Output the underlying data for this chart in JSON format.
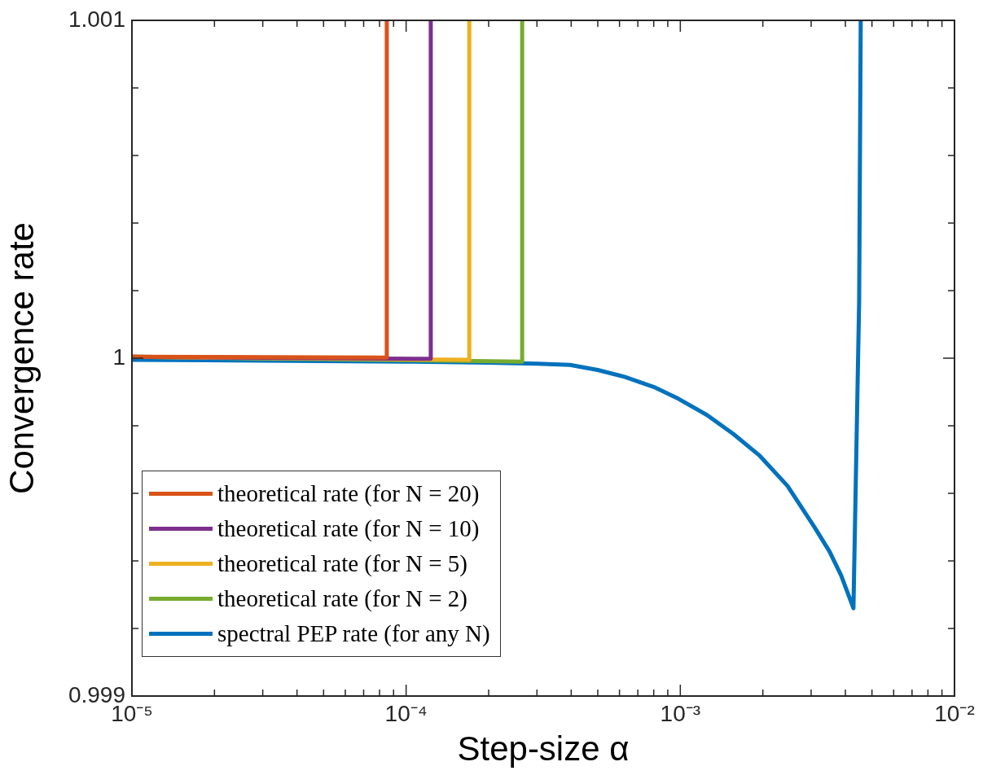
{
  "chart_data": {
    "type": "line",
    "xlabel": "Step-size α",
    "ylabel": "Convergence rate",
    "log": "x",
    "xlim": [
      1e-05,
      0.01
    ],
    "ylim": [
      0.999,
      1.001
    ],
    "xticks": [
      {
        "value": 1e-05,
        "label": "10⁻⁵"
      },
      {
        "value": 2e-05,
        "label": null
      },
      {
        "value": 3e-05,
        "label": null
      },
      {
        "value": 4e-05,
        "label": null
      },
      {
        "value": 5e-05,
        "label": null
      },
      {
        "value": 6e-05,
        "label": null
      },
      {
        "value": 7e-05,
        "label": null
      },
      {
        "value": 8e-05,
        "label": null
      },
      {
        "value": 9e-05,
        "label": null
      },
      {
        "value": 0.0001,
        "label": "10⁻⁴"
      },
      {
        "value": 0.0002,
        "label": null
      },
      {
        "value": 0.0003,
        "label": null
      },
      {
        "value": 0.0004,
        "label": null
      },
      {
        "value": 0.0005,
        "label": null
      },
      {
        "value": 0.0006,
        "label": null
      },
      {
        "value": 0.0007,
        "label": null
      },
      {
        "value": 0.0008,
        "label": null
      },
      {
        "value": 0.0009,
        "label": null
      },
      {
        "value": 0.001,
        "label": "10⁻³"
      },
      {
        "value": 0.002,
        "label": null
      },
      {
        "value": 0.003,
        "label": null
      },
      {
        "value": 0.004,
        "label": null
      },
      {
        "value": 0.005,
        "label": null
      },
      {
        "value": 0.006,
        "label": null
      },
      {
        "value": 0.007,
        "label": null
      },
      {
        "value": 0.008,
        "label": null
      },
      {
        "value": 0.009,
        "label": null
      },
      {
        "value": 0.01,
        "label": "10⁻²"
      }
    ],
    "yticks": [
      0.999,
      {
        "value": 0.9992,
        "label": null
      },
      {
        "value": 0.9994,
        "label": null
      },
      {
        "value": 0.9996,
        "label": null
      },
      {
        "value": 0.9998,
        "label": null
      },
      1,
      {
        "value": 1.0002,
        "label": null
      },
      {
        "value": 1.0004,
        "label": null
      },
      {
        "value": 1.0006,
        "label": null
      },
      {
        "value": 1.0008,
        "label": null
      },
      1.001
    ],
    "grid": false,
    "legend": "bottom left",
    "marker": "none",
    "line_style": "solid",
    "series": [
      {
        "name": "theoretical rate (for N = 20)",
        "color": "#d95319",
        "x": [
          1e-05,
          8.5e-05,
          8.5e-05
        ],
        "values": [
          1.000004,
          1.000002,
          1.001
        ]
      },
      {
        "name": "theoretical rate (for N = 10)",
        "color": "#7e2f8e",
        "x": [
          1e-05,
          0.000123,
          0.000123
        ],
        "values": [
          1.000004,
          0.999998,
          1.001
        ]
      },
      {
        "name": "theoretical rate (for N = 5)",
        "color": "#edb120",
        "x": [
          1e-05,
          0.00017,
          0.00017
        ],
        "values": [
          1.000004,
          0.999995,
          1.001
        ]
      },
      {
        "name": "theoretical rate (for N = 2)",
        "color": "#77ac30",
        "x": [
          1e-05,
          0.000265,
          0.000265
        ],
        "values": [
          1.000004,
          0.99999,
          1.001
        ]
      },
      {
        "name": "spectral PEP rate (for any N)",
        "color": "#0072bd",
        "x": [
          1e-05,
          3e-05,
          0.0001,
          0.0002,
          0.0003,
          0.000396,
          0.0005,
          0.000626,
          0.0008,
          0.000984,
          0.00125,
          0.00156,
          0.00195,
          0.00246,
          0.00308,
          0.0035,
          0.00386,
          0.00428,
          0.00449,
          0.00455
        ],
        "values": [
          0.999995,
          0.999993,
          0.99999,
          0.999987,
          0.999984,
          0.99998,
          0.999965,
          0.999945,
          0.999915,
          0.99988,
          0.999832,
          0.999776,
          0.999711,
          0.999622,
          0.999501,
          0.999428,
          0.999357,
          0.99926,
          1.000169,
          1.001
        ]
      }
    ]
  }
}
